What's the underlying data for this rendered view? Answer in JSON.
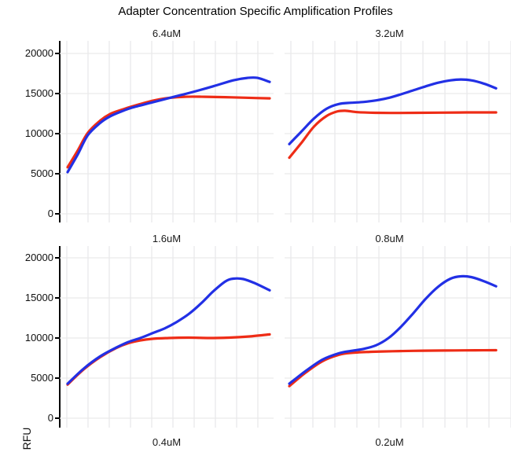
{
  "title": "Adapter Concentration Specific Amplification Profiles",
  "y_axis": {
    "label": "RFU",
    "ticks": [
      "20000",
      "15000",
      "10000",
      "5000",
      "0"
    ],
    "tick_values": [
      20000,
      15000,
      10000,
      5000,
      0
    ]
  },
  "colors": {
    "blue": "#2230e5",
    "red": "#ee2c16",
    "grid": "#e9e9ea",
    "axis": "#000000"
  },
  "chart_data": {
    "type": "line",
    "title": "Adapter Concentration Specific Amplification Profiles",
    "ylabel": "RFU",
    "ylim": [
      0,
      20000
    ],
    "grid": "on",
    "legend": "none",
    "x_axis_note": "x tick labels not visible (figure cropped at bottom); x given as percent of visible axis",
    "panels": [
      {
        "label": "6.4uM",
        "series": [
          {
            "name": "red",
            "color_key": "red",
            "points": [
              [
                0,
                5800
              ],
              [
                5,
                7900
              ],
              [
                10,
                10100
              ],
              [
                16,
                11600
              ],
              [
                21,
                12450
              ],
              [
                27,
                13000
              ],
              [
                32,
                13400
              ],
              [
                42,
                14100
              ],
              [
                50,
                14450
              ],
              [
                58,
                14600
              ],
              [
                68,
                14600
              ],
              [
                78,
                14550
              ],
              [
                88,
                14480
              ],
              [
                100,
                14400
              ]
            ]
          },
          {
            "name": "blue",
            "color_key": "blue",
            "points": [
              [
                0,
                5200
              ],
              [
                5,
                7400
              ],
              [
                10,
                9800
              ],
              [
                16,
                11300
              ],
              [
                21,
                12150
              ],
              [
                27,
                12800
              ],
              [
                32,
                13250
              ],
              [
                42,
                13900
              ],
              [
                52,
                14550
              ],
              [
                62,
                15200
              ],
              [
                72,
                15900
              ],
              [
                82,
                16650
              ],
              [
                89,
                16950
              ],
              [
                94,
                16950
              ],
              [
                100,
                16450
              ]
            ]
          }
        ]
      },
      {
        "label": "3.2uM",
        "series": [
          {
            "name": "red",
            "color_key": "red",
            "points": [
              [
                0,
                7000
              ],
              [
                6,
                8900
              ],
              [
                12,
                10900
              ],
              [
                18,
                12200
              ],
              [
                23,
                12750
              ],
              [
                27,
                12850
              ],
              [
                33,
                12680
              ],
              [
                42,
                12600
              ],
              [
                52,
                12580
              ],
              [
                62,
                12600
              ],
              [
                72,
                12620
              ],
              [
                82,
                12640
              ],
              [
                92,
                12650
              ],
              [
                100,
                12650
              ]
            ]
          },
          {
            "name": "blue",
            "color_key": "blue",
            "points": [
              [
                0,
                8700
              ],
              [
                6,
                10300
              ],
              [
                12,
                11900
              ],
              [
                18,
                13100
              ],
              [
                24,
                13700
              ],
              [
                30,
                13850
              ],
              [
                36,
                13950
              ],
              [
                42,
                14150
              ],
              [
                48,
                14450
              ],
              [
                54,
                14900
              ],
              [
                60,
                15400
              ],
              [
                66,
                15900
              ],
              [
                72,
                16350
              ],
              [
                78,
                16650
              ],
              [
                83,
                16750
              ],
              [
                88,
                16650
              ],
              [
                94,
                16250
              ],
              [
                100,
                15650
              ]
            ]
          }
        ]
      },
      {
        "label": "1.6uM",
        "series": [
          {
            "name": "red",
            "color_key": "red",
            "points": [
              [
                0,
                4200
              ],
              [
                8,
                6100
              ],
              [
                16,
                7600
              ],
              [
                24,
                8750
              ],
              [
                30,
                9350
              ],
              [
                36,
                9700
              ],
              [
                42,
                9900
              ],
              [
                50,
                10000
              ],
              [
                60,
                10050
              ],
              [
                70,
                10000
              ],
              [
                80,
                10050
              ],
              [
                90,
                10200
              ],
              [
                100,
                10450
              ]
            ]
          },
          {
            "name": "blue",
            "color_key": "blue",
            "points": [
              [
                0,
                4300
              ],
              [
                8,
                6200
              ],
              [
                16,
                7700
              ],
              [
                24,
                8800
              ],
              [
                30,
                9500
              ],
              [
                36,
                10000
              ],
              [
                42,
                10600
              ],
              [
                48,
                11200
              ],
              [
                54,
                12000
              ],
              [
                60,
                13000
              ],
              [
                66,
                14300
              ],
              [
                72,
                15800
              ],
              [
                78,
                17050
              ],
              [
                82,
                17400
              ],
              [
                87,
                17350
              ],
              [
                93,
                16800
              ],
              [
                100,
                15950
              ]
            ]
          }
        ]
      },
      {
        "label": "0.8uM",
        "series": [
          {
            "name": "red",
            "color_key": "red",
            "points": [
              [
                0,
                4000
              ],
              [
                8,
                5700
              ],
              [
                16,
                7100
              ],
              [
                24,
                7900
              ],
              [
                30,
                8150
              ],
              [
                40,
                8280
              ],
              [
                50,
                8350
              ],
              [
                60,
                8400
              ],
              [
                70,
                8430
              ],
              [
                80,
                8450
              ],
              [
                90,
                8470
              ],
              [
                100,
                8480
              ]
            ]
          },
          {
            "name": "blue",
            "color_key": "blue",
            "points": [
              [
                0,
                4300
              ],
              [
                8,
                5900
              ],
              [
                16,
                7300
              ],
              [
                24,
                8100
              ],
              [
                30,
                8400
              ],
              [
                36,
                8650
              ],
              [
                42,
                9100
              ],
              [
                48,
                10000
              ],
              [
                54,
                11400
              ],
              [
                60,
                13100
              ],
              [
                66,
                14900
              ],
              [
                72,
                16400
              ],
              [
                78,
                17400
              ],
              [
                83,
                17700
              ],
              [
                88,
                17600
              ],
              [
                94,
                17100
              ],
              [
                100,
                16450
              ]
            ]
          }
        ]
      },
      {
        "label": "0.4uM",
        "series": []
      },
      {
        "label": "0.2uM",
        "series": []
      }
    ]
  }
}
